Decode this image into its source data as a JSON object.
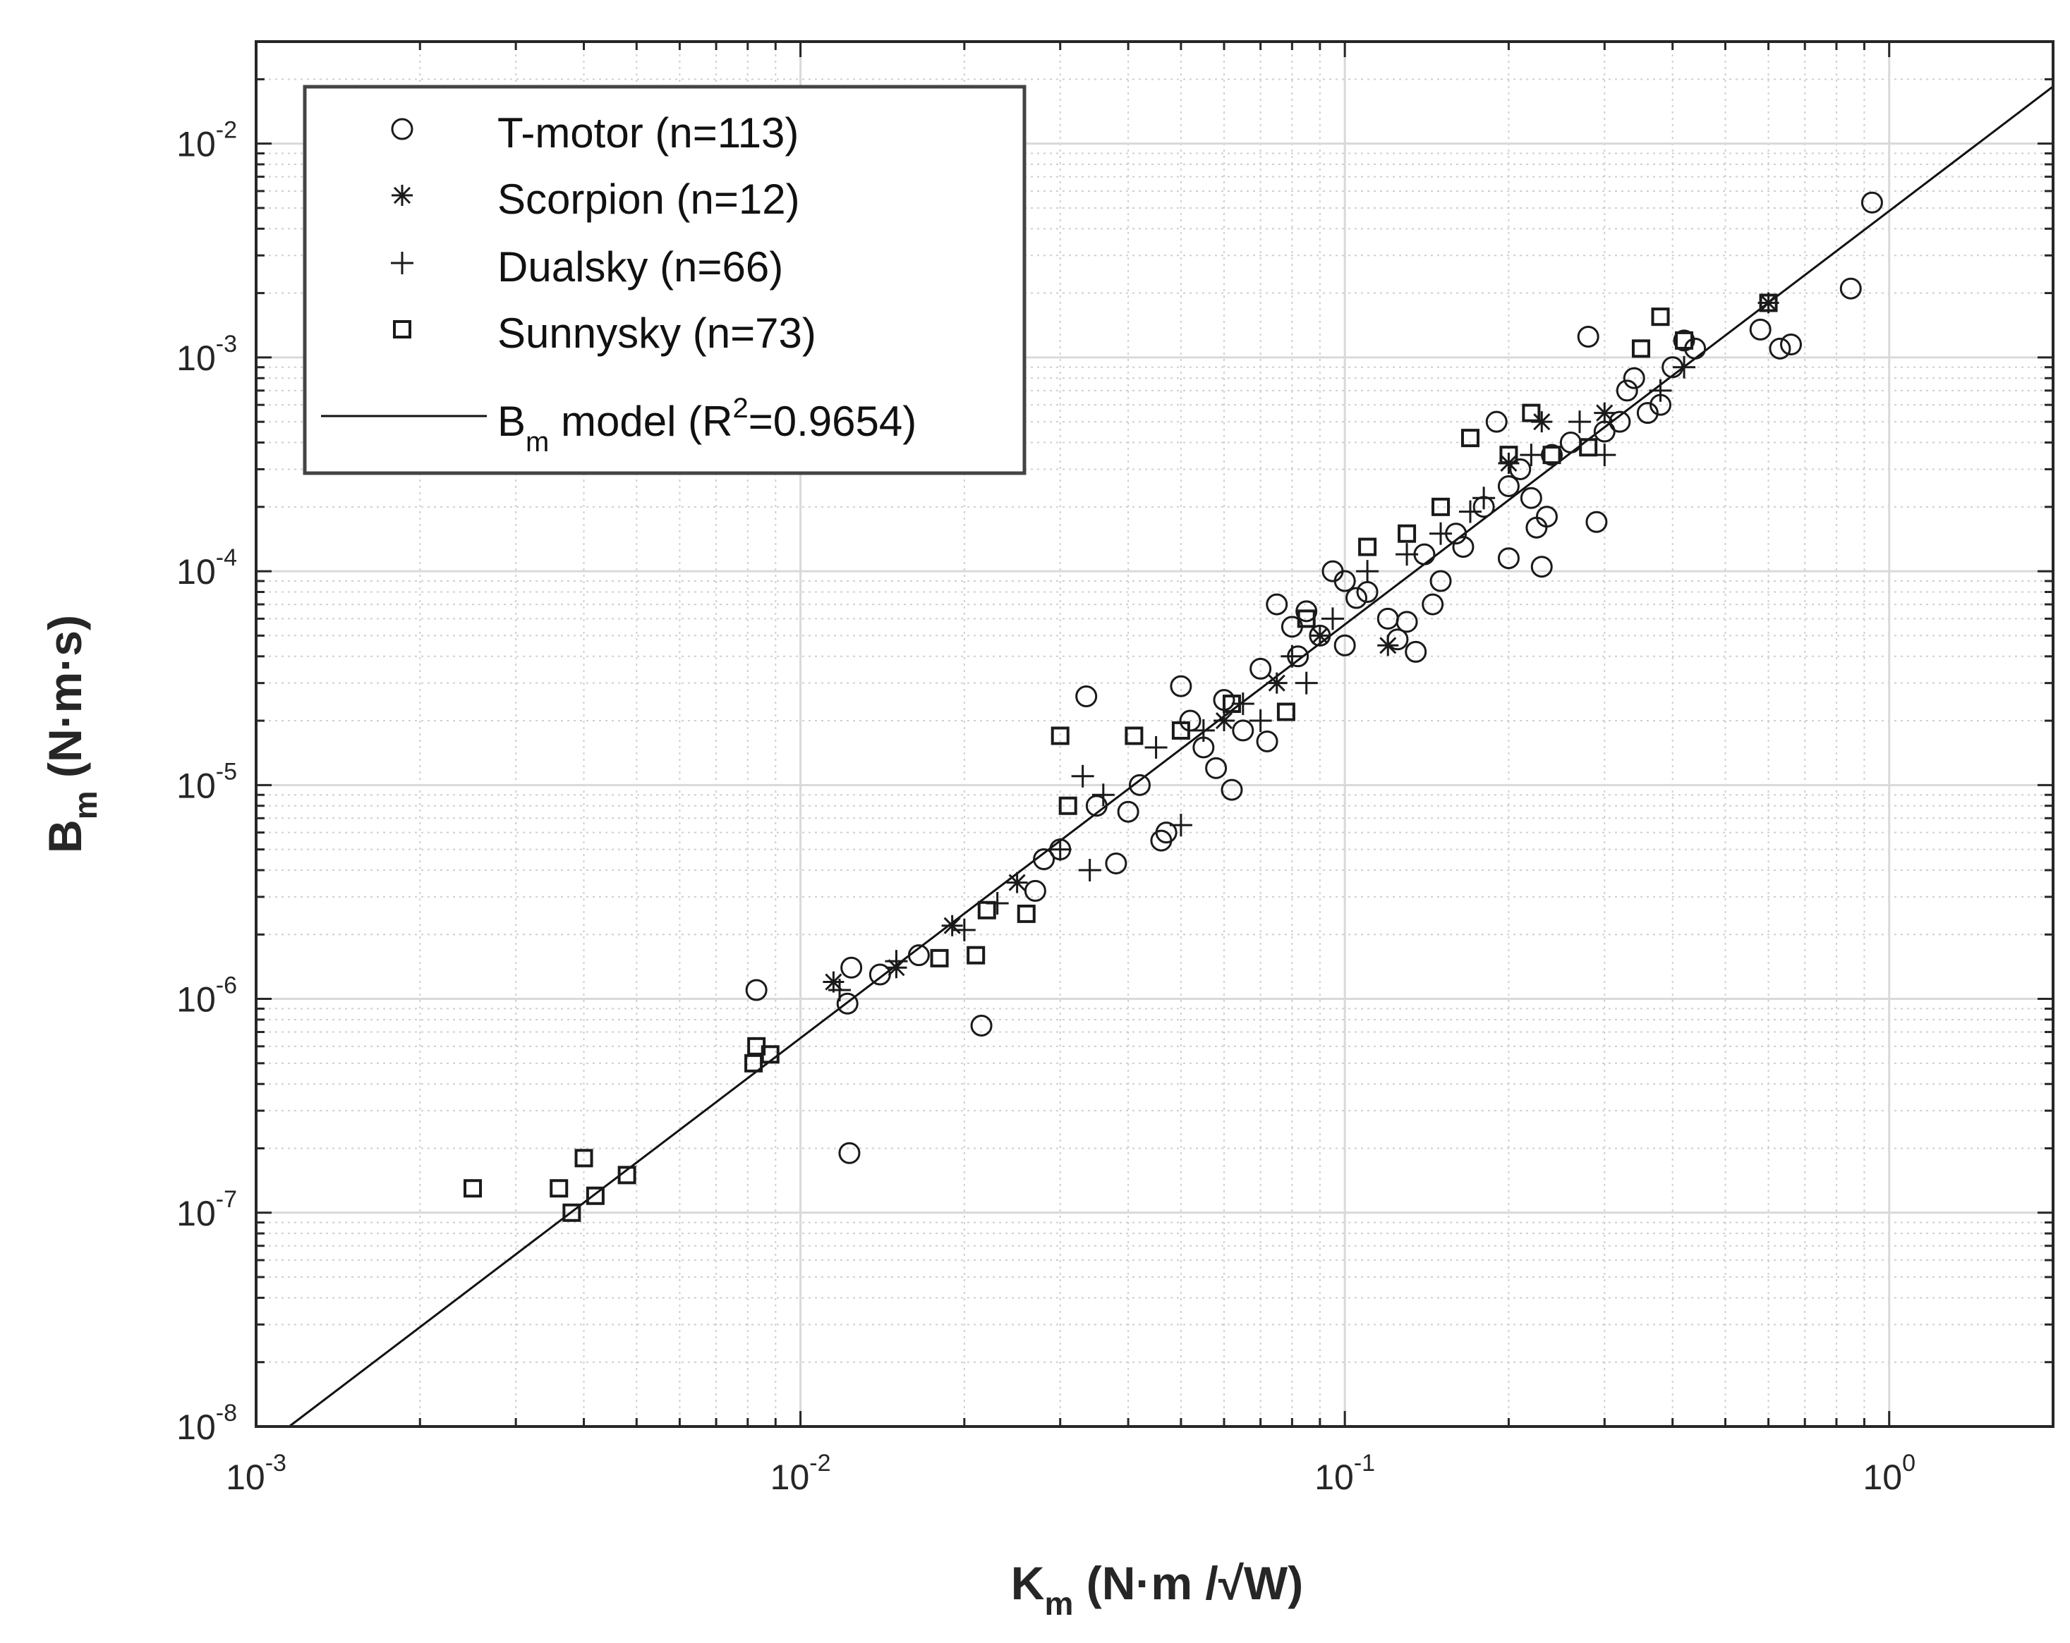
{
  "chart_data": {
    "type": "scatter",
    "title": "",
    "xscale": "log",
    "yscale": "log",
    "xlim": [
      0.001,
      2.0
    ],
    "ylim": [
      1e-08,
      0.03
    ],
    "grid": true,
    "minor_grid": true,
    "xlabel": {
      "main": "K",
      "sub": "m",
      "units": " (N·m /√W)"
    },
    "ylabel": {
      "main": "B",
      "sub": "m",
      "units": " (N·m·s)"
    },
    "x_ticks": [
      {
        "value": 0.001,
        "base": "10",
        "exp": "-3"
      },
      {
        "value": 0.01,
        "base": "10",
        "exp": "-2"
      },
      {
        "value": 0.1,
        "base": "10",
        "exp": "-1"
      },
      {
        "value": 1,
        "base": "10",
        "exp": "0"
      }
    ],
    "y_ticks": [
      {
        "value": 1e-08,
        "base": "10",
        "exp": "-8"
      },
      {
        "value": 1e-07,
        "base": "10",
        "exp": "-7"
      },
      {
        "value": 1e-06,
        "base": "10",
        "exp": "-6"
      },
      {
        "value": 1e-05,
        "base": "10",
        "exp": "-5"
      },
      {
        "value": 0.0001,
        "base": "10",
        "exp": "-4"
      },
      {
        "value": 0.001,
        "base": "10",
        "exp": "-3"
      },
      {
        "value": 0.01,
        "base": "10",
        "exp": "-2"
      }
    ],
    "legend": {
      "position": "top-left",
      "entries": [
        {
          "key": "tmotor",
          "marker": "circle",
          "label": "T-motor (n=113)"
        },
        {
          "key": "scorpion",
          "marker": "asterisk",
          "label": "Scorpion (n=12)"
        },
        {
          "key": "dualsky",
          "marker": "plus",
          "label": "Dualsky (n=66)"
        },
        {
          "key": "sunnysky",
          "marker": "square",
          "label": "Sunnysky (n=73)"
        },
        {
          "key": "model",
          "marker": "line",
          "label_main": "B",
          "label_sub": "m",
          "label_mid": " model (R",
          "label_sup": "2",
          "label_end": "=0.9654)"
        }
      ]
    },
    "model_line": {
      "name": "Bm model",
      "r_squared": 0.9654,
      "points": [
        [
          0.00115,
          1e-08
        ],
        [
          2.0,
          0.0185
        ]
      ]
    },
    "series": [
      {
        "name": "T-motor",
        "marker": "circle",
        "n": 113,
        "points": [
          [
            0.0083,
            1.1e-06
          ],
          [
            0.0123,
            1.9e-07
          ],
          [
            0.0215,
            7.5e-07
          ],
          [
            0.0124,
            1.4e-06
          ],
          [
            0.0122,
            9.5e-07
          ],
          [
            0.014,
            1.3e-06
          ],
          [
            0.0165,
            1.6e-06
          ],
          [
            0.027,
            3.2e-06
          ],
          [
            0.028,
            4.5e-06
          ],
          [
            0.03,
            5e-06
          ],
          [
            0.0335,
            2.6e-05
          ],
          [
            0.035,
            8e-06
          ],
          [
            0.038,
            4.3e-06
          ],
          [
            0.04,
            7.5e-06
          ],
          [
            0.042,
            1e-05
          ],
          [
            0.046,
            5.5e-06
          ],
          [
            0.047,
            6e-06
          ],
          [
            0.05,
            2.9e-05
          ],
          [
            0.052,
            2e-05
          ],
          [
            0.055,
            1.5e-05
          ],
          [
            0.058,
            1.2e-05
          ],
          [
            0.06,
            2.5e-05
          ],
          [
            0.062,
            9.5e-06
          ],
          [
            0.065,
            1.8e-05
          ],
          [
            0.07,
            3.5e-05
          ],
          [
            0.072,
            1.6e-05
          ],
          [
            0.075,
            7e-05
          ],
          [
            0.08,
            5.5e-05
          ],
          [
            0.082,
            4e-05
          ],
          [
            0.085,
            6.5e-05
          ],
          [
            0.09,
            5e-05
          ],
          [
            0.095,
            0.0001
          ],
          [
            0.1,
            9e-05
          ],
          [
            0.1,
            4.5e-05
          ],
          [
            0.105,
            7.5e-05
          ],
          [
            0.11,
            8e-05
          ],
          [
            0.12,
            6e-05
          ],
          [
            0.125,
            4.8e-05
          ],
          [
            0.13,
            5.8e-05
          ],
          [
            0.135,
            4.2e-05
          ],
          [
            0.14,
            0.00012
          ],
          [
            0.145,
            7e-05
          ],
          [
            0.15,
            9e-05
          ],
          [
            0.16,
            0.00015
          ],
          [
            0.165,
            0.00013
          ],
          [
            0.18,
            0.0002
          ],
          [
            0.19,
            0.0005
          ],
          [
            0.2,
            0.000115
          ],
          [
            0.2,
            0.00025
          ],
          [
            0.21,
            0.0003
          ],
          [
            0.22,
            0.00022
          ],
          [
            0.225,
            0.00016
          ],
          [
            0.23,
            0.000105
          ],
          [
            0.235,
            0.00018
          ],
          [
            0.24,
            0.00035
          ],
          [
            0.26,
            0.0004
          ],
          [
            0.28,
            0.00125
          ],
          [
            0.29,
            0.00017
          ],
          [
            0.3,
            0.00045
          ],
          [
            0.32,
            0.0005
          ],
          [
            0.33,
            0.0007
          ],
          [
            0.34,
            0.0008
          ],
          [
            0.36,
            0.00055
          ],
          [
            0.38,
            0.0006
          ],
          [
            0.4,
            0.0009
          ],
          [
            0.42,
            0.0012
          ],
          [
            0.44,
            0.0011
          ],
          [
            0.58,
            0.00135
          ],
          [
            0.63,
            0.0011
          ],
          [
            0.66,
            0.00115
          ],
          [
            0.85,
            0.0021
          ],
          [
            0.93,
            0.0053
          ]
        ]
      },
      {
        "name": "Scorpion",
        "marker": "asterisk",
        "n": 12,
        "points": [
          [
            0.0115,
            1.2e-06
          ],
          [
            0.015,
            1.4e-06
          ],
          [
            0.019,
            2.2e-06
          ],
          [
            0.025,
            3.5e-06
          ],
          [
            0.06,
            2e-05
          ],
          [
            0.075,
            3e-05
          ],
          [
            0.09,
            5e-05
          ],
          [
            0.12,
            4.5e-05
          ],
          [
            0.2,
            0.00032
          ],
          [
            0.23,
            0.0005
          ],
          [
            0.3,
            0.00055
          ],
          [
            0.6,
            0.0018
          ]
        ]
      },
      {
        "name": "Dualsky",
        "marker": "plus",
        "n": 66,
        "points": [
          [
            0.0118,
            1.1e-06
          ],
          [
            0.015,
            1.5e-06
          ],
          [
            0.02,
            2.1e-06
          ],
          [
            0.023,
            2.8e-06
          ],
          [
            0.03,
            5e-06
          ],
          [
            0.033,
            1.1e-05
          ],
          [
            0.034,
            4e-06
          ],
          [
            0.036,
            9e-06
          ],
          [
            0.045,
            1.5e-05
          ],
          [
            0.05,
            6.5e-06
          ],
          [
            0.055,
            1.8e-05
          ],
          [
            0.065,
            2.4e-05
          ],
          [
            0.07,
            2e-05
          ],
          [
            0.08,
            4e-05
          ],
          [
            0.085,
            3e-05
          ],
          [
            0.095,
            6e-05
          ],
          [
            0.11,
            0.0001
          ],
          [
            0.13,
            0.00012
          ],
          [
            0.15,
            0.00015
          ],
          [
            0.17,
            0.00019
          ],
          [
            0.18,
            0.00022
          ],
          [
            0.22,
            0.00035
          ],
          [
            0.27,
            0.0005
          ],
          [
            0.3,
            0.00035
          ],
          [
            0.38,
            0.0007
          ],
          [
            0.42,
            0.0009
          ]
        ]
      },
      {
        "name": "Sunnysky",
        "marker": "square",
        "n": 73,
        "points": [
          [
            0.0025,
            1.3e-07
          ],
          [
            0.0036,
            1.3e-07
          ],
          [
            0.0038,
            1e-07
          ],
          [
            0.004,
            1.8e-07
          ],
          [
            0.0042,
            1.2e-07
          ],
          [
            0.0048,
            1.5e-07
          ],
          [
            0.0082,
            5e-07
          ],
          [
            0.0083,
            6e-07
          ],
          [
            0.0088,
            5.5e-07
          ],
          [
            0.018,
            1.55e-06
          ],
          [
            0.021,
            1.6e-06
          ],
          [
            0.022,
            2.6e-06
          ],
          [
            0.026,
            2.5e-06
          ],
          [
            0.03,
            1.7e-05
          ],
          [
            0.031,
            8e-06
          ],
          [
            0.041,
            1.7e-05
          ],
          [
            0.05,
            1.8e-05
          ],
          [
            0.062,
            2.4e-05
          ],
          [
            0.078,
            2.2e-05
          ],
          [
            0.085,
            6e-05
          ],
          [
            0.11,
            0.00013
          ],
          [
            0.13,
            0.00015
          ],
          [
            0.15,
            0.0002
          ],
          [
            0.17,
            0.00042
          ],
          [
            0.2,
            0.00035
          ],
          [
            0.22,
            0.00055
          ],
          [
            0.24,
            0.00035
          ],
          [
            0.28,
            0.00038
          ],
          [
            0.35,
            0.0011
          ],
          [
            0.38,
            0.00155
          ],
          [
            0.42,
            0.0012
          ],
          [
            0.6,
            0.0018
          ]
        ]
      }
    ]
  }
}
